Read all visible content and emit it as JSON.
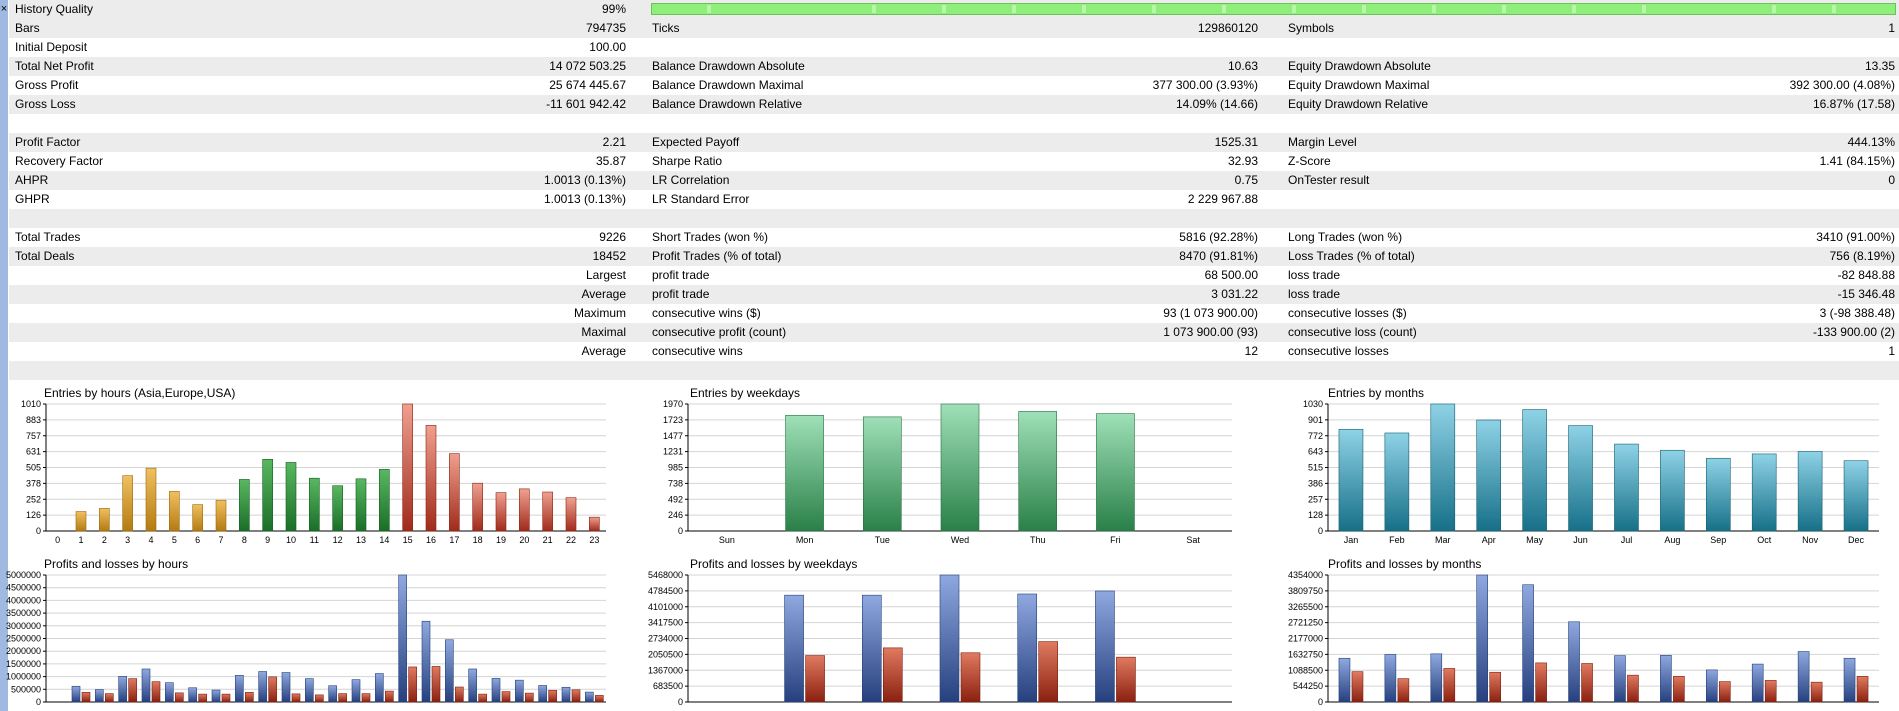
{
  "window": {
    "close_glyph": "×"
  },
  "report": {
    "rows": [
      {
        "alt": true,
        "hq": true,
        "l1": "History Quality",
        "v1": "99%",
        "l2": "",
        "v2": "",
        "l3": "",
        "v3": ""
      },
      {
        "alt": true,
        "l1": "Bars",
        "v1": "794735",
        "l2": "Ticks",
        "v2": "129860120",
        "l3": "Symbols",
        "v3": "1"
      },
      {
        "alt": false,
        "l1": "Initial Deposit",
        "v1": "100.00",
        "l2": "",
        "v2": "",
        "l3": "",
        "v3": ""
      },
      {
        "alt": true,
        "l1": "Total Net Profit",
        "v1": "14 072 503.25",
        "l2": "Balance Drawdown Absolute",
        "v2": "10.63",
        "l3": "Equity Drawdown Absolute",
        "v3": "13.35"
      },
      {
        "alt": false,
        "l1": "Gross Profit",
        "v1": "25 674 445.67",
        "l2": "Balance Drawdown Maximal",
        "v2": "377 300.00 (3.93%)",
        "l3": "Equity Drawdown Maximal",
        "v3": "392 300.00 (4.08%)"
      },
      {
        "alt": true,
        "l1": "Gross Loss",
        "v1": "-11 601 942.42",
        "l2": "Balance Drawdown Relative",
        "v2": "14.09% (14.66)",
        "l3": "Equity Drawdown Relative",
        "v3": "16.87% (17.58)"
      },
      {
        "alt": false,
        "l1": "",
        "v1": "",
        "l2": "",
        "v2": "",
        "l3": "",
        "v3": ""
      },
      {
        "alt": true,
        "l1": "Profit Factor",
        "v1": "2.21",
        "l2": "Expected Payoff",
        "v2": "1525.31",
        "l3": "Margin Level",
        "v3": "444.13%"
      },
      {
        "alt": false,
        "l1": "Recovery Factor",
        "v1": "35.87",
        "l2": "Sharpe Ratio",
        "v2": "32.93",
        "l3": "Z-Score",
        "v3": "1.41 (84.15%)"
      },
      {
        "alt": true,
        "l1": "AHPR",
        "v1": "1.0013 (0.13%)",
        "l2": "LR Correlation",
        "v2": "0.75",
        "l3": "OnTester result",
        "v3": "0"
      },
      {
        "alt": false,
        "l1": "GHPR",
        "v1": "1.0013 (0.13%)",
        "l2": "LR Standard Error",
        "v2": "2 229 967.88",
        "l3": "",
        "v3": ""
      },
      {
        "alt": true,
        "l1": "",
        "v1": "",
        "l2": "",
        "v2": "",
        "l3": "",
        "v3": ""
      },
      {
        "alt": false,
        "l1": "Total Trades",
        "v1": "9226",
        "l2": "Short Trades (won %)",
        "v2": "5816 (92.28%)",
        "l3": "Long Trades (won %)",
        "v3": "3410 (91.00%)"
      },
      {
        "alt": true,
        "l1": "Total Deals",
        "v1": "18452",
        "l2": "Profit Trades (% of total)",
        "v2": "8470 (91.81%)",
        "l3": "Loss Trades (% of total)",
        "v3": "756 (8.19%)"
      },
      {
        "alt": false,
        "l1": "",
        "v1": "Largest",
        "l2": "profit trade",
        "v2": "68 500.00",
        "l3": "loss trade",
        "v3": "-82 848.88"
      },
      {
        "alt": true,
        "l1": "",
        "v1": "Average",
        "l2": "profit trade",
        "v2": "3 031.22",
        "l3": "loss trade",
        "v3": "-15 346.48"
      },
      {
        "alt": false,
        "l1": "",
        "v1": "Maximum",
        "l2": "consecutive wins ($)",
        "v2": "93 (1 073 900.00)",
        "l3": "consecutive losses ($)",
        "v3": "3 (-98 388.48)"
      },
      {
        "alt": true,
        "l1": "",
        "v1": "Maximal",
        "l2": "consecutive profit (count)",
        "v2": "1 073 900.00 (93)",
        "l3": "consecutive loss (count)",
        "v3": "-133 900.00 (2)"
      },
      {
        "alt": false,
        "l1": "",
        "v1": "Average",
        "l2": "consecutive wins",
        "v2": "12",
        "l3": "consecutive losses",
        "v3": "1"
      },
      {
        "alt": true,
        "l1": "",
        "v1": "",
        "l2": "",
        "v2": "",
        "l3": "",
        "v3": ""
      }
    ]
  },
  "colors": {
    "green": "#2f8f3f",
    "green_dark": "#1a6e28",
    "orange": "#d4a02a",
    "orange_dark": "#b47a10",
    "red": "#c84a35",
    "red_dark": "#a02a1a",
    "red_light": "#e38a78",
    "wk_green": "#3da05e",
    "wk_green_light": "#9fe0b8",
    "teal": "#2a8fa8",
    "teal_light": "#8fd2e6",
    "blue": "#3a5fa8",
    "blue_light": "#8fa8e0",
    "loss_red": "#b8402a",
    "grid": "#d4d4d4"
  },
  "chart_data": [
    {
      "type": "bar",
      "title": "Entries by hours (Asia,Europe,USA)",
      "categories": [
        "0",
        "1",
        "2",
        "3",
        "4",
        "5",
        "6",
        "7",
        "8",
        "9",
        "10",
        "11",
        "12",
        "13",
        "14",
        "15",
        "16",
        "17",
        "18",
        "19",
        "20",
        "21",
        "22",
        "23"
      ],
      "values": [
        0,
        155,
        180,
        440,
        500,
        315,
        210,
        245,
        410,
        570,
        545,
        420,
        360,
        415,
        490,
        1010,
        840,
        615,
        380,
        305,
        335,
        310,
        265,
        110
      ],
      "yticks": [
        "0",
        "126",
        "252",
        "378",
        "505",
        "631",
        "757",
        "883",
        "1010"
      ],
      "ylim": [
        0,
        1010
      ]
    },
    {
      "type": "bar",
      "title": "Entries by weekdays",
      "categories": [
        "Sun",
        "Mon",
        "Tue",
        "Wed",
        "Thu",
        "Fri",
        "Sat"
      ],
      "values": [
        0,
        1795,
        1770,
        1970,
        1855,
        1820,
        0
      ],
      "yticks": [
        "0",
        "246",
        "492",
        "738",
        "985",
        "1231",
        "1477",
        "1723",
        "1970"
      ],
      "ylim": [
        0,
        1970
      ]
    },
    {
      "type": "bar",
      "title": "Entries by months",
      "categories": [
        "Jan",
        "Feb",
        "Mar",
        "Apr",
        "May",
        "Jun",
        "Jul",
        "Aug",
        "Sep",
        "Oct",
        "Nov",
        "Dec"
      ],
      "values": [
        825,
        795,
        1030,
        900,
        985,
        855,
        705,
        655,
        590,
        625,
        645,
        570
      ],
      "yticks": [
        "0",
        "128",
        "257",
        "386",
        "515",
        "643",
        "772",
        "901",
        "1030"
      ],
      "ylim": [
        0,
        1030
      ]
    },
    {
      "type": "bar",
      "title": "Profits and losses by hours",
      "categories": [
        "0",
        "1",
        "2",
        "3",
        "4",
        "5",
        "6",
        "7",
        "8",
        "9",
        "10",
        "11",
        "12",
        "13",
        "14",
        "15",
        "16",
        "17",
        "18",
        "19",
        "20",
        "21",
        "22",
        "23"
      ],
      "series": [
        {
          "values": [
            0,
            620000,
            490000,
            1010000,
            1300000,
            760000,
            560000,
            470000,
            1050000,
            1200000,
            1160000,
            920000,
            640000,
            880000,
            1120000,
            5000000,
            3180000,
            2450000,
            1300000,
            930000,
            860000,
            650000,
            580000,
            390000
          ]
        },
        {
          "values": [
            0,
            380000,
            330000,
            920000,
            800000,
            360000,
            310000,
            310000,
            380000,
            990000,
            320000,
            280000,
            330000,
            330000,
            430000,
            1380000,
            1400000,
            590000,
            310000,
            410000,
            350000,
            460000,
            480000,
            260000
          ]
        }
      ],
      "yticks": [
        "0",
        "500000",
        "1000000",
        "1500000",
        "2000000",
        "2500000",
        "3000000",
        "3500000",
        "4000000",
        "4500000",
        "5000000"
      ],
      "ylim": [
        0,
        5000000
      ]
    },
    {
      "type": "bar",
      "title": "Profits and losses by weekdays",
      "categories": [
        "Sun",
        "Mon",
        "Tue",
        "Wed",
        "Thu",
        "Fri",
        "Sat"
      ],
      "series": [
        {
          "values": [
            0,
            4600000,
            4600000,
            5468000,
            4650000,
            4780000,
            0
          ]
        },
        {
          "values": [
            0,
            2000000,
            2330000,
            2120000,
            2600000,
            1930000,
            0
          ]
        }
      ],
      "yticks": [
        "0",
        "683500",
        "1367000",
        "2050500",
        "2734000",
        "3417500",
        "4101000",
        "4784500",
        "5468000"
      ],
      "ylim": [
        0,
        5468000
      ]
    },
    {
      "type": "bar",
      "title": "Profits and losses by months",
      "categories": [
        "Jan",
        "Feb",
        "Mar",
        "Apr",
        "May",
        "Jun",
        "Jul",
        "Aug",
        "Sep",
        "Oct",
        "Nov",
        "Dec"
      ],
      "series": [
        {
          "values": [
            1500000,
            1630000,
            1650000,
            4354000,
            4020000,
            2750000,
            1590000,
            1600000,
            1100000,
            1300000,
            1730000,
            1500000
          ]
        },
        {
          "values": [
            1040000,
            800000,
            1150000,
            1020000,
            1340000,
            1320000,
            920000,
            880000,
            700000,
            740000,
            680000,
            880000
          ]
        }
      ],
      "yticks": [
        "0",
        "544250",
        "1088500",
        "1632750",
        "2177000",
        "2721250",
        "3265500",
        "3809750",
        "4354000"
      ],
      "ylim": [
        0,
        4354000
      ]
    }
  ]
}
